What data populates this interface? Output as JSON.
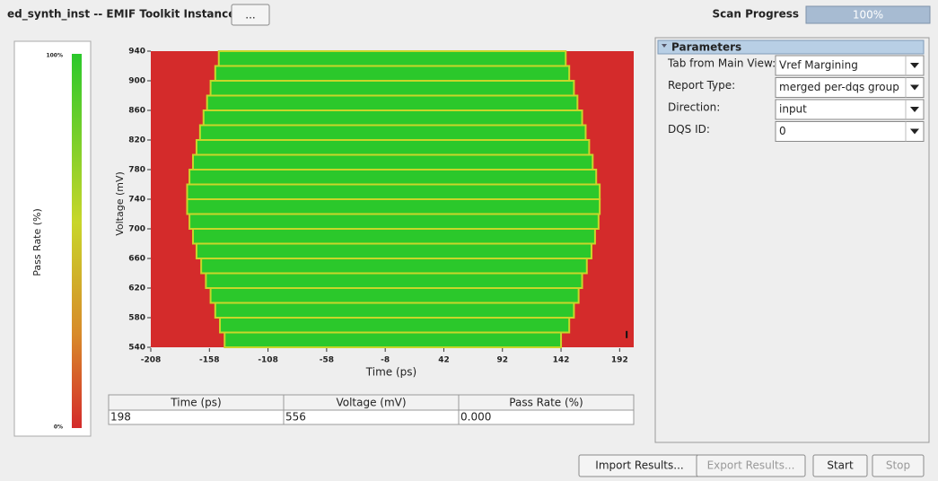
{
  "header": {
    "title": "ed_synth_inst -- EMIF Toolkit Instance",
    "button": "...",
    "progress_label": "Scan Progress",
    "progress_value": "100%"
  },
  "legend": {
    "title": "Pass Rate (%)",
    "max_label": "100%",
    "min_label": "0%"
  },
  "chart_data": {
    "type": "heatmap",
    "x_label": "Time (ps)",
    "y_label": "Voltage (mV)",
    "xlim": [
      -208,
      204
    ],
    "ylim": [
      540,
      940
    ],
    "xticks": [
      -208,
      -158,
      -108,
      -58,
      -8,
      42,
      92,
      142,
      192
    ],
    "yticks": [
      540,
      580,
      620,
      660,
      700,
      740,
      780,
      820,
      860,
      900,
      940
    ],
    "pass_color": "#2bc82b",
    "fail_color": "#d42b2b",
    "edge_color": "#c8d62a",
    "rows": {
      "voltage": [
        540,
        560,
        580,
        600,
        620,
        640,
        660,
        680,
        700,
        720,
        740,
        760,
        780,
        800,
        820,
        840,
        860,
        880,
        900,
        920
      ],
      "left": [
        -145,
        -149,
        -153,
        -157,
        -161,
        -165,
        -169,
        -172,
        -175,
        -177,
        -177,
        -175,
        -172,
        -169,
        -166,
        -163,
        -160,
        -157,
        -153,
        -150
      ],
      "right": [
        142,
        149,
        153,
        157,
        160,
        164,
        168,
        171,
        174,
        175,
        175,
        172,
        169,
        166,
        163,
        160,
        156,
        153,
        149,
        146
      ]
    }
  },
  "table": {
    "columns": [
      "Time (ps)",
      "Voltage (mV)",
      "Pass Rate (%)"
    ],
    "rows": [
      [
        "198",
        "556",
        "0.000"
      ]
    ]
  },
  "parameters": {
    "title": "Parameters",
    "fields": [
      {
        "label": "Tab from Main View:",
        "value": "Vref Margining"
      },
      {
        "label": "Report Type:",
        "value": "merged per-dqs group"
      },
      {
        "label": "Direction:",
        "value": "input"
      },
      {
        "label": "DQS ID:",
        "value": "0"
      }
    ]
  },
  "buttons": [
    "Import Results...",
    "Export Results...",
    "Start",
    "Stop"
  ]
}
